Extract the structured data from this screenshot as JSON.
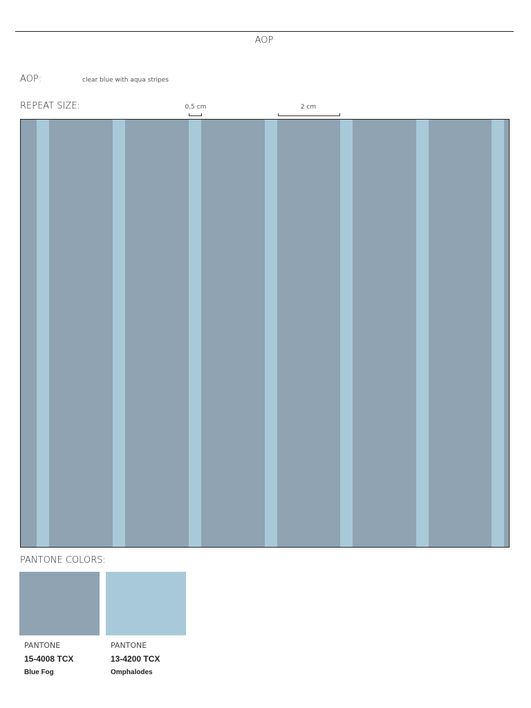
{
  "header": {
    "title": "AOP"
  },
  "aop": {
    "label": "AOP:",
    "description": "clear blue with aqua stripes"
  },
  "repeat": {
    "label": "REPEAT SIZE:",
    "stripe_width": "0,5 cm",
    "spacing": "2 cm"
  },
  "pantone": {
    "label": "PANTONE COLORS:",
    "swatches": [
      {
        "brand": "PANTONE",
        "code": "15-4008 TCX",
        "name": "Blue Fog",
        "color": "#8fa3b3"
      },
      {
        "brand": "PANTONE",
        "code": "13-4200 TCX",
        "name": "Omphalodes",
        "color": "#a8cad8"
      }
    ]
  }
}
